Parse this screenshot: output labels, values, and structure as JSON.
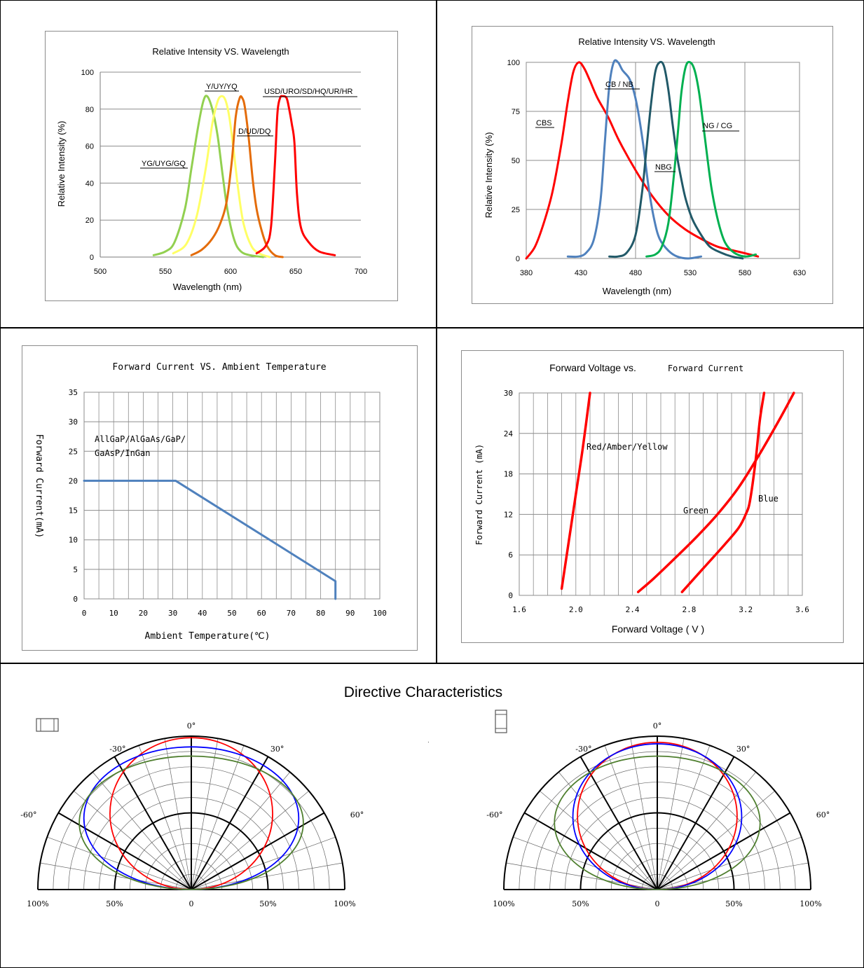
{
  "chart_data": [
    {
      "type": "line",
      "title": "Relative Intensity VS. Wavelength",
      "xlabel": "Wavelength (nm)",
      "ylabel": "Relative Intensity (%)",
      "xlim": [
        500,
        700
      ],
      "ylim": [
        0,
        100
      ],
      "xticks": [
        "500",
        "550",
        "600",
        "650",
        "700"
      ],
      "yticks": [
        "0",
        "20",
        "40",
        "60",
        "80",
        "100"
      ],
      "series": [
        {
          "name": "YG/UYG/GQ",
          "color": "#92d050",
          "x": [
            541,
            550,
            557,
            565,
            570,
            575,
            579,
            582,
            586,
            590,
            594,
            598,
            603,
            608,
            615,
            625
          ],
          "y": [
            1,
            3,
            8,
            26,
            48,
            70,
            84,
            87,
            80,
            66,
            44,
            24,
            9,
            3,
            1,
            0
          ]
        },
        {
          "name": "Y/UY/YQ",
          "color": "#ffff66",
          "x": [
            556,
            566,
            574,
            581,
            586,
            590,
            593,
            596,
            599,
            602,
            606,
            610,
            616,
            622,
            630
          ],
          "y": [
            2,
            7,
            22,
            48,
            72,
            84,
            87,
            85,
            76,
            60,
            36,
            18,
            6,
            2,
            0
          ]
        },
        {
          "name": "D/UD/DQ",
          "color": "#e46c0a",
          "x": [
            570,
            578,
            586,
            592,
            597,
            601,
            604,
            607,
            609,
            611,
            614,
            617,
            620,
            624,
            628,
            634,
            640
          ],
          "y": [
            1,
            4,
            10,
            18,
            30,
            52,
            76,
            86,
            86,
            81,
            64,
            42,
            26,
            14,
            6,
            1,
            0
          ]
        },
        {
          "name": "USD/URO/SD/HQ/UR/HR",
          "color": "#ff0000",
          "x": [
            620,
            627,
            631,
            634,
            636,
            638,
            640,
            643,
            645,
            647,
            649,
            651,
            654,
            660,
            668,
            680
          ],
          "y": [
            2,
            6,
            16,
            50,
            78,
            86,
            87,
            86,
            80,
            72,
            62,
            34,
            16,
            8,
            3,
            1
          ]
        }
      ],
      "annotations": [
        "YG/UYG/GQ",
        "Y/UY/YQ",
        "D/UD/DQ",
        "USD/URO/SD/HQ/UR/HR"
      ]
    },
    {
      "type": "line",
      "title": "Relative Intensity VS. Wavelength",
      "xlabel": "Wavelength (nm)",
      "ylabel": "Relative Intensity (%)",
      "xlim": [
        380,
        630
      ],
      "ylim": [
        0,
        100
      ],
      "xticks": [
        "380",
        "430",
        "480",
        "530",
        "580",
        "630"
      ],
      "yticks": [
        "0",
        "25",
        "50",
        "75",
        "100"
      ],
      "series": [
        {
          "name": "CBS",
          "color": "#ff0000",
          "x": [
            380,
            388,
            396,
            404,
            412,
            418,
            423,
            428,
            433,
            438,
            445,
            455,
            465,
            480,
            495,
            510,
            525,
            540,
            555,
            570,
            585,
            592
          ],
          "y": [
            0,
            6,
            18,
            34,
            58,
            80,
            95,
            100,
            97,
            91,
            82,
            72,
            60,
            45,
            32,
            22,
            15,
            10,
            6,
            4,
            2,
            1
          ]
        },
        {
          "name": "CB/NB",
          "color": "#4f81bd",
          "x": [
            418,
            428,
            435,
            442,
            448,
            452,
            456,
            460,
            464,
            468,
            474,
            478,
            482,
            487,
            492,
            497,
            502,
            510,
            518,
            528,
            540
          ],
          "y": [
            1,
            1,
            3,
            10,
            30,
            60,
            88,
            100,
            100,
            96,
            92,
            86,
            76,
            58,
            36,
            20,
            10,
            4,
            1,
            0,
            1
          ]
        },
        {
          "name": "NBG",
          "color": "#215968",
          "x": [
            456,
            464,
            472,
            480,
            486,
            490,
            494,
            498,
            502,
            506,
            510,
            514,
            518,
            522,
            526,
            532,
            540,
            548,
            558,
            568,
            578
          ],
          "y": [
            1,
            1,
            3,
            12,
            34,
            56,
            78,
            95,
            100,
            98,
            86,
            68,
            52,
            40,
            30,
            20,
            12,
            6,
            3,
            1,
            0
          ]
        },
        {
          "name": "NG/CG",
          "color": "#00b050",
          "x": [
            490,
            498,
            504,
            510,
            515,
            519,
            522,
            526,
            530,
            534,
            538,
            542,
            546,
            550,
            556,
            562,
            570,
            580,
            590
          ],
          "y": [
            1,
            2,
            6,
            18,
            42,
            66,
            85,
            98,
            100,
            96,
            85,
            68,
            50,
            34,
            18,
            8,
            3,
            1,
            2
          ]
        }
      ],
      "annotations": [
        "CBS",
        "CB / NB",
        "NBG",
        "NG / CG"
      ]
    },
    {
      "type": "line",
      "title": "Forward Current VS. Ambient Temperature",
      "xlabel": "Ambient Temperature(℃)",
      "ylabel": "Forward Current(mA)",
      "xlim": [
        0,
        100
      ],
      "ylim": [
        0,
        35
      ],
      "xticks": [
        "0",
        "10",
        "20",
        "30",
        "40",
        "50",
        "60",
        "70",
        "80",
        "90",
        "100"
      ],
      "yticks": [
        "0",
        "5",
        "10",
        "15",
        "20",
        "25",
        "30",
        "35"
      ],
      "series": [
        {
          "name": "",
          "color": "#4f81bd",
          "x": [
            0,
            31,
            85,
            85
          ],
          "y": [
            20,
            20,
            3,
            0
          ]
        }
      ],
      "annotations": [
        "AllGaP/AlGaAs/GaP/",
        "GaAsP/InGan"
      ]
    },
    {
      "type": "line",
      "title": "Forward Voltage vs.",
      "title_suffix": "Forward Current",
      "xlabel": "Forward Voltage ( V )",
      "ylabel": "Forward Current (mA)",
      "xlim": [
        1.6,
        3.6
      ],
      "ylim": [
        0,
        30
      ],
      "xticks": [
        "1.6",
        "2.0",
        "2.4",
        "2.8",
        "3.2",
        "3.6"
      ],
      "yticks": [
        "0",
        "6",
        "12",
        "18",
        "24",
        "30"
      ],
      "series": [
        {
          "name": "Red/Amber/Yellow",
          "color": "#ff0000",
          "x": [
            1.9,
            1.95,
            2.0,
            2.05,
            2.1
          ],
          "y": [
            1,
            8,
            15,
            22,
            30
          ]
        },
        {
          "name": "Green",
          "color": "#ff0000",
          "x": [
            2.44,
            2.55,
            2.7,
            2.85,
            3.0,
            3.15,
            3.3,
            3.45,
            3.54
          ],
          "y": [
            0.5,
            2.5,
            5.5,
            8.6,
            12,
            16,
            21,
            26.5,
            30
          ]
        },
        {
          "name": "Blue",
          "color": "#ff0000",
          "x": [
            2.75,
            2.9,
            3.05,
            3.15,
            3.2,
            3.23,
            3.27,
            3.3,
            3.33
          ],
          "y": [
            0.5,
            4,
            7.5,
            10,
            12,
            14,
            20,
            26,
            30
          ]
        }
      ],
      "annotations": [
        "Red/Amber/Yellow",
        "Green",
        "Blue"
      ]
    },
    {
      "type": "polar",
      "title": "Directive Characteristics",
      "panels": [
        {
          "angle_labels": [
            "-60°",
            "-30°",
            "0°",
            "30°",
            "60°"
          ],
          "radial_labels": [
            "100%",
            "50%",
            "0",
            "50%",
            "100%"
          ],
          "series": [
            {
              "color": "#ff0000",
              "rx": 0.53,
              "ry": 0.99,
              "cy": 0.495
            },
            {
              "color": "#0000ff",
              "rx": 0.7,
              "ry": 0.93,
              "cy": 0.465
            },
            {
              "color": "#4f7f2f",
              "rx": 0.73,
              "ry": 0.87,
              "cy": 0.435
            }
          ]
        },
        {
          "angle_labels": [
            "-60°",
            "-30°",
            "0°",
            "30°",
            "60°"
          ],
          "radial_labels": [
            "100%",
            "50%",
            "0",
            "50%",
            "100%"
          ],
          "series": [
            {
              "color": "#ff0000",
              "rx": 0.52,
              "ry": 0.96,
              "cy": 0.48
            },
            {
              "color": "#0000ff",
              "rx": 0.55,
              "ry": 0.95,
              "cy": 0.475
            },
            {
              "color": "#4f7f2f",
              "rx": 0.67,
              "ry": 0.87,
              "cy": 0.435
            }
          ]
        }
      ]
    }
  ]
}
